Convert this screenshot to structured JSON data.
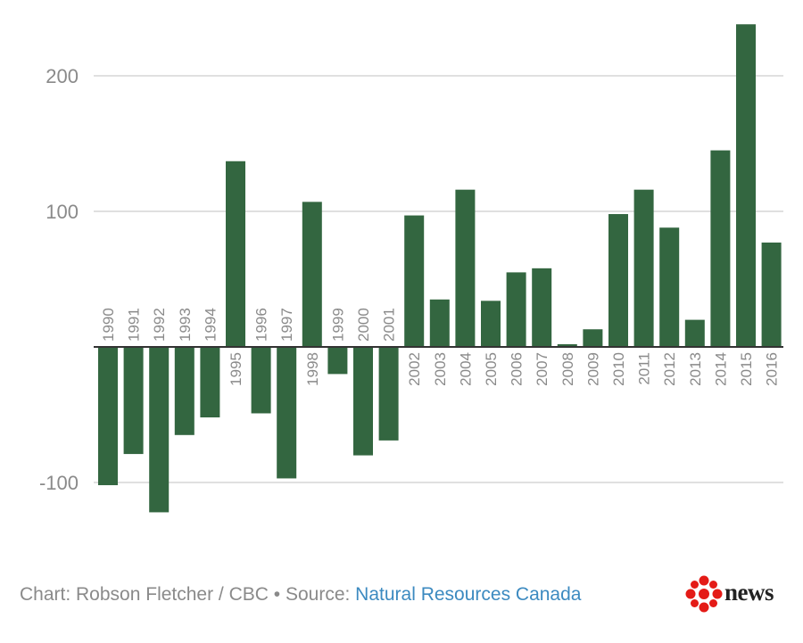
{
  "chart_data": {
    "type": "bar",
    "categories": [
      "1990",
      "1991",
      "1992",
      "1993",
      "1994",
      "1995",
      "1996",
      "1997",
      "1998",
      "1999",
      "2000",
      "2001",
      "2002",
      "2003",
      "2004",
      "2005",
      "2006",
      "2007",
      "2008",
      "2009",
      "2010",
      "2011",
      "2012",
      "2013",
      "2014",
      "2015",
      "2016"
    ],
    "values": [
      -102,
      -79,
      -122,
      -65,
      -52,
      137,
      -49,
      -97,
      107,
      -20,
      -80,
      -69,
      97,
      35,
      116,
      34,
      55,
      58,
      2,
      13,
      98,
      116,
      88,
      20,
      145,
      238,
      77
    ],
    "yticks": [
      200,
      100,
      -100
    ],
    "ytick_labels": [
      "200",
      "100",
      "-100"
    ],
    "ylim": [
      -140,
      240
    ],
    "bar_color": "#336640",
    "title": "",
    "xlabel": "",
    "ylabel": ""
  },
  "footer": {
    "credit": "Chart: Robson Fletcher / CBC • Source: ",
    "source": "Natural Resources Canada"
  },
  "logo": {
    "wordmark": "news",
    "icon": "cbc-gem-icon",
    "color": "#e41b17"
  }
}
